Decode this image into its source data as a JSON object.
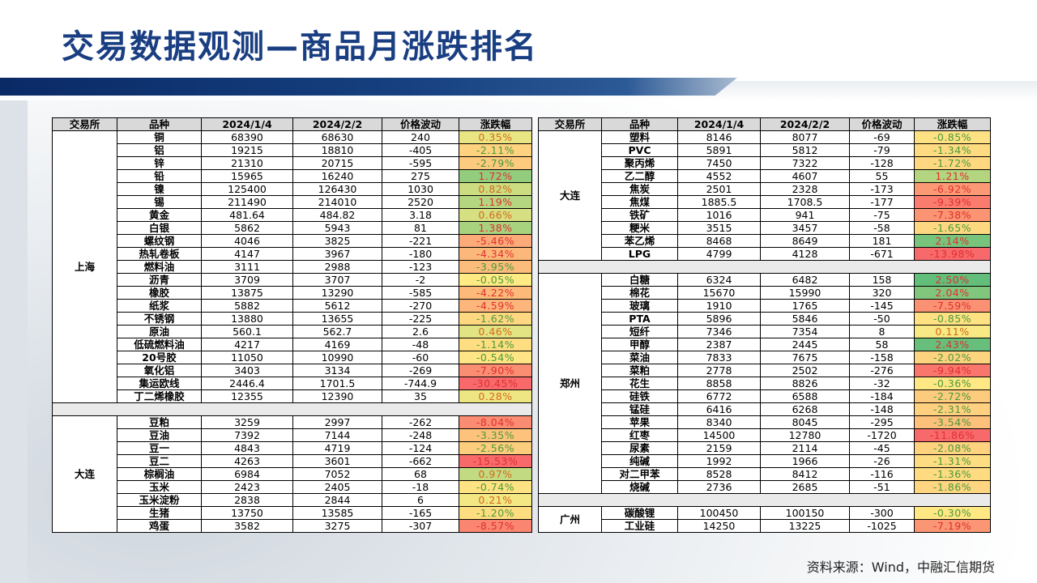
{
  "page": {
    "title": "交易数据观测—商品月涨跌排名",
    "source": "资料来源：Wind，中融汇信期货"
  },
  "colors": {
    "title": "#1a3e82",
    "header_bg": "#d9d9d9",
    "separator_bg": "#eaeaea"
  },
  "chart_data": {
    "type": "table",
    "columns": [
      "交易所",
      "品种",
      "2024/1/4",
      "2024/2/2",
      "价格波动",
      "涨跌幅"
    ],
    "tables": [
      {
        "groups": [
          {
            "exchange": "上海",
            "rows": [
              [
                "铜",
                "68390",
                "68630",
                "240",
                "0.35%"
              ],
              [
                "铝",
                "19215",
                "18810",
                "-405",
                "-2.11%"
              ],
              [
                "锌",
                "21310",
                "20715",
                "-595",
                "-2.79%"
              ],
              [
                "铅",
                "15965",
                "16240",
                "275",
                "1.72%"
              ],
              [
                "镍",
                "125400",
                "126430",
                "1030",
                "0.82%"
              ],
              [
                "锡",
                "211490",
                "214010",
                "2520",
                "1.19%"
              ],
              [
                "黄金",
                "481.64",
                "484.82",
                "3.18",
                "0.66%"
              ],
              [
                "白银",
                "5862",
                "5943",
                "81",
                "1.38%"
              ],
              [
                "螺纹钢",
                "4046",
                "3825",
                "-221",
                "-5.46%"
              ],
              [
                "热轧卷板",
                "4147",
                "3967",
                "-180",
                "-4.34%"
              ],
              [
                "燃料油",
                "3111",
                "2988",
                "-123",
                "-3.95%"
              ],
              [
                "沥青",
                "3709",
                "3707",
                "-2",
                "-0.05%"
              ],
              [
                "橡胶",
                "13875",
                "13290",
                "-585",
                "-4.22%"
              ],
              [
                "纸浆",
                "5882",
                "5612",
                "-270",
                "-4.59%"
              ],
              [
                "不锈钢",
                "13880",
                "13655",
                "-225",
                "-1.62%"
              ],
              [
                "原油",
                "560.1",
                "562.7",
                "2.6",
                "0.46%"
              ],
              [
                "低硫燃料油",
                "4217",
                "4169",
                "-48",
                "-1.14%"
              ],
              [
                "20号胶",
                "11050",
                "10990",
                "-60",
                "-0.54%"
              ],
              [
                "氧化铝",
                "3403",
                "3134",
                "-269",
                "-7.90%"
              ],
              [
                "集运欧线",
                "2446.4",
                "1701.5",
                "-744.9",
                "-30.45%"
              ],
              [
                "丁二烯橡胶",
                "12355",
                "12390",
                "35",
                "0.28%"
              ]
            ]
          },
          {
            "exchange": "大连",
            "rows": [
              [
                "豆粕",
                "3259",
                "2997",
                "-262",
                "-8.04%"
              ],
              [
                "豆油",
                "7392",
                "7144",
                "-248",
                "-3.35%"
              ],
              [
                "豆一",
                "4843",
                "4719",
                "-124",
                "-2.56%"
              ],
              [
                "豆二",
                "4263",
                "3601",
                "-662",
                "-15.53%"
              ],
              [
                "棕榈油",
                "6984",
                "7052",
                "68",
                "0.97%"
              ],
              [
                "玉米",
                "2423",
                "2405",
                "-18",
                "-0.74%"
              ],
              [
                "玉米淀粉",
                "2838",
                "2844",
                "6",
                "0.21%"
              ],
              [
                "生猪",
                "13750",
                "13585",
                "-165",
                "-1.20%"
              ],
              [
                "鸡蛋",
                "3582",
                "3275",
                "-307",
                "-8.57%"
              ]
            ]
          }
        ]
      },
      {
        "groups": [
          {
            "exchange": "大连",
            "rows": [
              [
                "塑料",
                "8146",
                "8077",
                "-69",
                "-0.85%"
              ],
              [
                "PVC",
                "5891",
                "5812",
                "-79",
                "-1.34%"
              ],
              [
                "聚丙烯",
                "7450",
                "7322",
                "-128",
                "-1.72%"
              ],
              [
                "乙二醇",
                "4552",
                "4607",
                "55",
                "1.21%"
              ],
              [
                "焦炭",
                "2501",
                "2328",
                "-173",
                "-6.92%"
              ],
              [
                "焦煤",
                "1885.5",
                "1708.5",
                "-177",
                "-9.39%"
              ],
              [
                "铁矿",
                "1016",
                "941",
                "-75",
                "-7.38%"
              ],
              [
                "粳米",
                "3515",
                "3457",
                "-58",
                "-1.65%"
              ],
              [
                "苯乙烯",
                "8468",
                "8649",
                "181",
                "2.14%"
              ],
              [
                "LPG",
                "4799",
                "4128",
                "-671",
                "-13.98%"
              ]
            ]
          },
          {
            "exchange": "郑州",
            "rows": [
              [
                "白糖",
                "6324",
                "6482",
                "158",
                "2.50%"
              ],
              [
                "棉花",
                "15670",
                "15990",
                "320",
                "2.04%"
              ],
              [
                "玻璃",
                "1910",
                "1765",
                "-145",
                "-7.59%"
              ],
              [
                "PTA",
                "5896",
                "5846",
                "-50",
                "-0.85%"
              ],
              [
                "短纤",
                "7346",
                "7354",
                "8",
                "0.11%"
              ],
              [
                "甲醇",
                "2387",
                "2445",
                "58",
                "2.43%"
              ],
              [
                "菜油",
                "7833",
                "7675",
                "-158",
                "-2.02%"
              ],
              [
                "菜粕",
                "2778",
                "2502",
                "-276",
                "-9.94%"
              ],
              [
                "花生",
                "8858",
                "8826",
                "-32",
                "-0.36%"
              ],
              [
                "硅铁",
                "6772",
                "6588",
                "-184",
                "-2.72%"
              ],
              [
                "锰硅",
                "6416",
                "6268",
                "-148",
                "-2.31%"
              ],
              [
                "苹果",
                "8340",
                "8045",
                "-295",
                "-3.54%"
              ],
              [
                "红枣",
                "14500",
                "12780",
                "-1720",
                "-11.86%"
              ],
              [
                "尿素",
                "2159",
                "2114",
                "-45",
                "-2.08%"
              ],
              [
                "纯碱",
                "1992",
                "1966",
                "-26",
                "-1.31%"
              ],
              [
                "对二甲苯",
                "8528",
                "8412",
                "-116",
                "-1.36%"
              ],
              [
                "烧碱",
                "2736",
                "2685",
                "-51",
                "-1.86%"
              ]
            ]
          },
          {
            "exchange": "广州",
            "rows": [
              [
                "碳酸锂",
                "100450",
                "100150",
                "-300",
                "-0.30%"
              ],
              [
                "工业硅",
                "14250",
                "13225",
                "-1025",
                "-7.19%"
              ]
            ]
          }
        ]
      }
    ]
  }
}
